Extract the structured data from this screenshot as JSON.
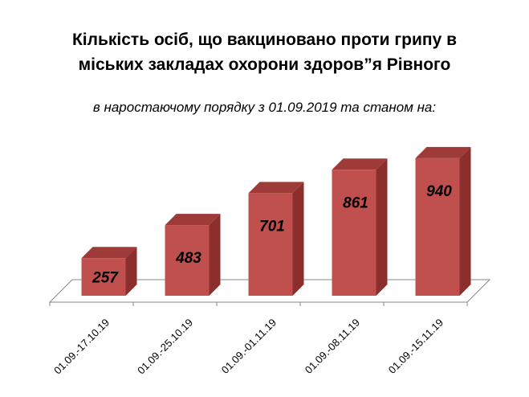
{
  "chart_data": {
    "type": "bar",
    "title_line1": "Кількість осіб, що вакциновано проти грипу в",
    "title_line2": "міських закладах охорони здоров”я Рівного",
    "subtitle": "в наростаючому порядку з 01.09.2019 та станом на:",
    "categories": [
      "01.09.-17.10.19",
      "01.09.-25.10.19",
      "01.09.-01.11.19",
      "01.09.-08.11.19",
      "01.09.-15.11.19"
    ],
    "values": [
      257,
      483,
      701,
      861,
      940
    ],
    "ylim": [
      0,
      1000
    ],
    "grid": false,
    "legend": "none",
    "colors": {
      "bar_front": "#c0504d",
      "bar_side": "#8b2e2c",
      "bar_top": "#9e3a38",
      "floor": "#888888"
    }
  }
}
